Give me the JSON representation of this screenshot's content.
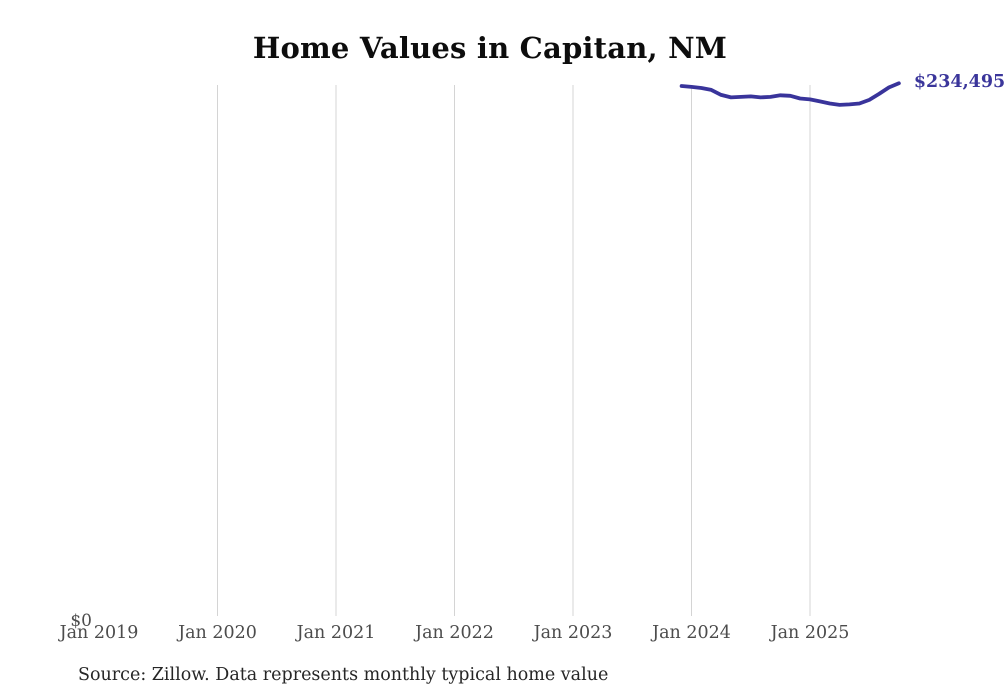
{
  "title": "Home Values in Capitan, NM",
  "chart_data": {
    "type": "line",
    "title": "Home Values in Capitan, NM",
    "xlabel": "",
    "ylabel": "",
    "x_tick_labels": [
      "Jan 2019",
      "Jan 2020",
      "Jan 2021",
      "Jan 2022",
      "Jan 2023",
      "Jan 2024",
      "Jan 2025"
    ],
    "y_tick_labels": [
      "$0"
    ],
    "ylim": [
      0,
      235500
    ],
    "x_start_year": 2019,
    "grid": "vertical-gridlines-only",
    "legend": "none",
    "end_label": "$234,495",
    "line_color": "#39349b",
    "gridline_color": "#d4d4d4",
    "series": [
      {
        "name": "Typical home value",
        "months": [
          "Dec 2023",
          "Jan 2024",
          "Feb 2024",
          "Mar 2024",
          "Apr 2024",
          "May 2024",
          "Jun 2024",
          "Jul 2024",
          "Aug 2024",
          "Sep 2024",
          "Oct 2024",
          "Nov 2024",
          "Dec 2024",
          "Jan 2025",
          "Feb 2025",
          "Mar 2025",
          "Apr 2025",
          "May 2025",
          "Jun 2025",
          "Jul 2025",
          "Aug 2025",
          "Sep 2025",
          "Oct 2025"
        ],
        "values": [
          233300,
          232900,
          232400,
          231600,
          229400,
          228300,
          228500,
          228700,
          228300,
          228500,
          229200,
          229000,
          227800,
          227400,
          226500,
          225600,
          225000,
          225200,
          225600,
          227200,
          229800,
          232700,
          234495
        ]
      }
    ]
  },
  "footer": {
    "source_note": "Source: Zillow. Data represents monthly typical home value"
  }
}
